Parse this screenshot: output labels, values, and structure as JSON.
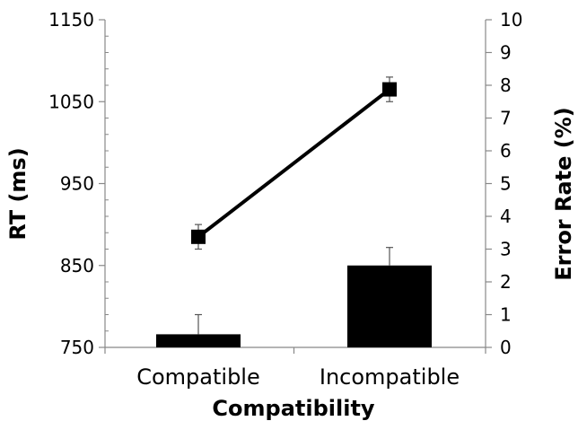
{
  "chart_data": {
    "type": "bar+line",
    "xlabel": "Compatibility",
    "categories": [
      "Compatible",
      "Incompatible"
    ],
    "y_left": {
      "label": "RT (ms)",
      "lim": [
        750,
        1150
      ],
      "ticks": [
        750,
        850,
        950,
        1050,
        1150
      ]
    },
    "y_right": {
      "label": "Error Rate  (%)",
      "lim": [
        0,
        10
      ],
      "ticks": [
        0,
        1,
        2,
        3,
        4,
        5,
        6,
        7,
        8,
        9,
        10
      ]
    },
    "series": [
      {
        "kind": "bar",
        "axis": "right",
        "values": [
          0.4,
          2.5
        ],
        "errors": [
          0.6,
          0.55
        ],
        "color": "#000000"
      },
      {
        "kind": "line",
        "axis": "left",
        "marker": "square",
        "values": [
          885,
          1065
        ],
        "errors": [
          15,
          15
        ],
        "color": "#000000"
      }
    ],
    "grid": false
  }
}
